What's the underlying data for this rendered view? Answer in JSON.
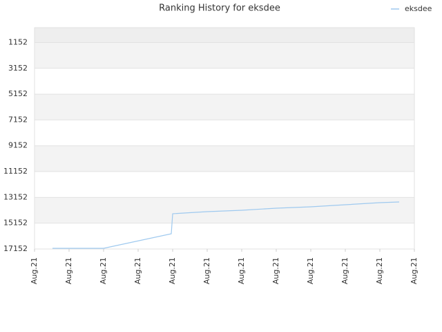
{
  "chart_data": {
    "type": "line",
    "title": "Ranking History for eksdee",
    "x": [
      0.52,
      2.0,
      3.96,
      4.0,
      5,
      6,
      7,
      8,
      9,
      10,
      10.56
    ],
    "series": [
      {
        "name": "eksdee",
        "color": "#9ec9ef",
        "values": [
          17098,
          17098,
          15973,
          14419,
          14258,
          14150,
          13990,
          13882,
          13722,
          13561,
          13508
        ]
      }
    ],
    "xlim": [
      0,
      11
    ],
    "xticks": [
      {
        "value": 0,
        "label": "Aug.21"
      },
      {
        "value": 1,
        "label": "Aug.21"
      },
      {
        "value": 2,
        "label": "Aug.21"
      },
      {
        "value": 3,
        "label": "Aug.21"
      },
      {
        "value": 4,
        "label": "Aug.21"
      },
      {
        "value": 5,
        "label": "Aug.21"
      },
      {
        "value": 6,
        "label": "Aug.21"
      },
      {
        "value": 7,
        "label": "Aug.21"
      },
      {
        "value": 8,
        "label": "Aug.21"
      },
      {
        "value": 9,
        "label": "Aug.21"
      },
      {
        "value": 10,
        "label": "Aug.21"
      },
      {
        "value": 11,
        "label": "Aug.21"
      }
    ],
    "ylim": [
      17152,
      0
    ],
    "yticks": [
      1152,
      3152,
      5152,
      7152,
      9152,
      11152,
      13152,
      15152,
      17152
    ],
    "grid": true,
    "legend": "top-right"
  }
}
